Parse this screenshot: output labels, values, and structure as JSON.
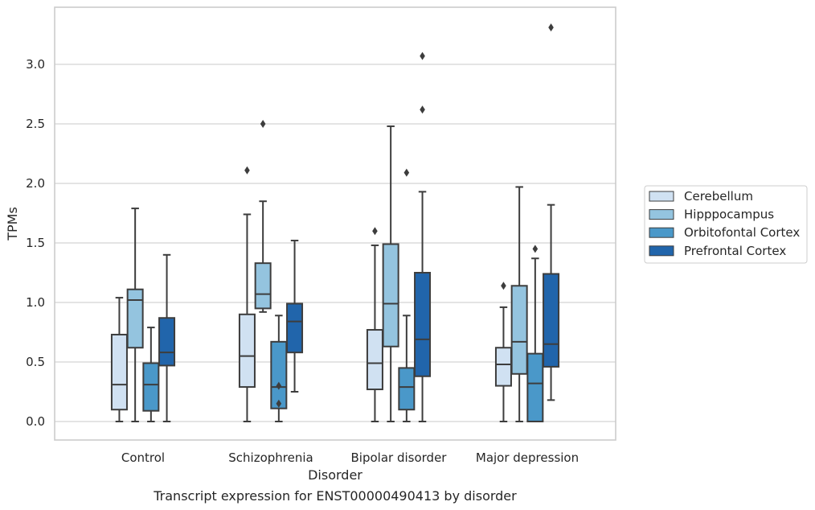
{
  "chart_data": {
    "type": "box",
    "xlabel": "Disorder",
    "ylabel": "TPMs",
    "caption": "Transcript expression for ENST00000490413 by disorder",
    "categories": [
      "Control",
      "Schizophrenia",
      "Bipolar disorder",
      "Major depression"
    ],
    "ylim": [
      -0.16,
      3.49
    ],
    "yticks": [
      "0.0",
      "0.5",
      "1.0",
      "1.5",
      "2.0",
      "2.5",
      "3.0"
    ],
    "grid": true,
    "legend_position": "right",
    "series": [
      {
        "name": "Cerebellum",
        "color": "#d0e1f2",
        "boxes": [
          {
            "q1": 0.1,
            "median": 0.31,
            "q3": 0.73,
            "whisker_low": 0.0,
            "whisker_high": 1.04,
            "outliers": []
          },
          {
            "q1": 0.29,
            "median": 0.55,
            "q3": 0.9,
            "whisker_low": 0.0,
            "whisker_high": 1.74,
            "outliers": [
              2.11
            ]
          },
          {
            "q1": 0.27,
            "median": 0.49,
            "q3": 0.77,
            "whisker_low": 0.0,
            "whisker_high": 1.48,
            "outliers": [
              1.6
            ]
          },
          {
            "q1": 0.3,
            "median": 0.48,
            "q3": 0.62,
            "whisker_low": 0.0,
            "whisker_high": 0.96,
            "outliers": [
              1.14
            ]
          }
        ]
      },
      {
        "name": "Hipppocampus",
        "color": "#94c4df",
        "boxes": [
          {
            "q1": 0.62,
            "median": 1.02,
            "q3": 1.11,
            "whisker_low": 0.0,
            "whisker_high": 1.79,
            "outliers": []
          },
          {
            "q1": 0.95,
            "median": 1.07,
            "q3": 1.33,
            "whisker_low": 0.92,
            "whisker_high": 1.85,
            "outliers": [
              2.5
            ]
          },
          {
            "q1": 0.63,
            "median": 0.99,
            "q3": 1.49,
            "whisker_low": 0.0,
            "whisker_high": 2.48,
            "outliers": []
          },
          {
            "q1": 0.4,
            "median": 0.67,
            "q3": 1.14,
            "whisker_low": 0.0,
            "whisker_high": 1.97,
            "outliers": []
          }
        ]
      },
      {
        "name": "Orbitofontal Cortex",
        "color": "#4a98c9",
        "boxes": [
          {
            "q1": 0.09,
            "median": 0.31,
            "q3": 0.49,
            "whisker_low": 0.0,
            "whisker_high": 0.79,
            "outliers": []
          },
          {
            "q1": 0.11,
            "median": 0.29,
            "q3": 0.67,
            "whisker_low": 0.0,
            "whisker_high": 0.89,
            "outliers": [
              0.3,
              0.15
            ]
          },
          {
            "q1": 0.1,
            "median": 0.29,
            "q3": 0.45,
            "whisker_low": 0.0,
            "whisker_high": 0.89,
            "outliers": [
              2.09
            ]
          },
          {
            "q1": 0.0,
            "median": 0.32,
            "q3": 0.57,
            "whisker_low": 0.0,
            "whisker_high": 1.37,
            "outliers": [
              1.45
            ]
          }
        ]
      },
      {
        "name": "Prefrontal Cortex",
        "color": "#2165ab",
        "boxes": [
          {
            "q1": 0.47,
            "median": 0.58,
            "q3": 0.87,
            "whisker_low": 0.0,
            "whisker_high": 1.4,
            "outliers": []
          },
          {
            "q1": 0.58,
            "median": 0.84,
            "q3": 0.99,
            "whisker_low": 0.25,
            "whisker_high": 1.52,
            "outliers": []
          },
          {
            "q1": 0.38,
            "median": 0.69,
            "q3": 1.25,
            "whisker_low": 0.0,
            "whisker_high": 1.93,
            "outliers": [
              2.62,
              3.07
            ]
          },
          {
            "q1": 0.46,
            "median": 0.65,
            "q3": 1.24,
            "whisker_low": 0.18,
            "whisker_high": 1.82,
            "outliers": [
              3.31
            ]
          }
        ]
      }
    ]
  }
}
